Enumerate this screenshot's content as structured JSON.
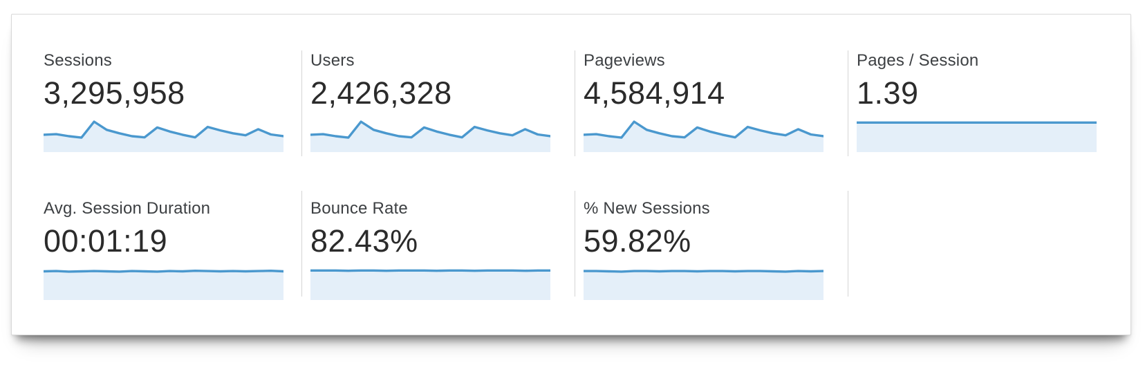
{
  "panel": {
    "description": "analytics metrics overview panel"
  },
  "cards": [
    {
      "label": "Sessions",
      "value": "3,295,958"
    },
    {
      "label": "Users",
      "value": "2,426,328"
    },
    {
      "label": "Pageviews",
      "value": "4,584,914"
    },
    {
      "label": "Pages / Session",
      "value": "1.39"
    },
    {
      "label": "Avg. Session Duration",
      "value": "00:01:19"
    },
    {
      "label": "Bounce Rate",
      "value": "82.43%"
    },
    {
      "label": "% New Sessions",
      "value": "59.82%"
    }
  ],
  "chart_data": [
    {
      "type": "area",
      "name": "sessions-sparkline",
      "title": "Sessions trend",
      "axes": "none (unlabeled sparkline)",
      "points_norm": [
        0.55,
        0.57,
        0.5,
        0.45,
        1.0,
        0.72,
        0.6,
        0.5,
        0.46,
        0.8,
        0.66,
        0.55,
        0.46,
        0.82,
        0.7,
        0.6,
        0.53,
        0.74,
        0.56,
        0.5
      ]
    },
    {
      "type": "area",
      "name": "users-sparkline",
      "title": "Users trend",
      "axes": "none (unlabeled sparkline)",
      "points_norm": [
        0.55,
        0.57,
        0.5,
        0.45,
        1.0,
        0.72,
        0.6,
        0.5,
        0.46,
        0.8,
        0.66,
        0.55,
        0.46,
        0.82,
        0.7,
        0.6,
        0.53,
        0.74,
        0.56,
        0.5
      ]
    },
    {
      "type": "area",
      "name": "pageviews-sparkline",
      "title": "Pageviews trend",
      "axes": "none (unlabeled sparkline)",
      "points_norm": [
        0.55,
        0.57,
        0.5,
        0.45,
        1.0,
        0.72,
        0.6,
        0.5,
        0.46,
        0.8,
        0.66,
        0.55,
        0.46,
        0.82,
        0.7,
        0.6,
        0.53,
        0.74,
        0.56,
        0.5
      ]
    },
    {
      "type": "area",
      "name": "pages-per-session-sparkline",
      "title": "Pages / Session trend (flat)",
      "axes": "none (unlabeled sparkline)",
      "points_norm": [
        0.97,
        0.97,
        0.97,
        0.97,
        0.97,
        0.97,
        0.97,
        0.97,
        0.97,
        0.97,
        0.97,
        0.97,
        0.97,
        0.97,
        0.97,
        0.97,
        0.97,
        0.97,
        0.97,
        0.97
      ]
    },
    {
      "type": "area",
      "name": "avg-session-duration-sparkline",
      "title": "Avg. Session Duration trend (near flat)",
      "axes": "none (unlabeled sparkline)",
      "points_norm": [
        0.94,
        0.95,
        0.93,
        0.94,
        0.95,
        0.94,
        0.93,
        0.95,
        0.94,
        0.93,
        0.95,
        0.94,
        0.96,
        0.95,
        0.94,
        0.95,
        0.94,
        0.95,
        0.96,
        0.94
      ]
    },
    {
      "type": "area",
      "name": "bounce-rate-sparkline",
      "title": "Bounce Rate trend (flat)",
      "axes": "none (unlabeled sparkline)",
      "points_norm": [
        0.97,
        0.97,
        0.97,
        0.96,
        0.97,
        0.97,
        0.96,
        0.97,
        0.97,
        0.97,
        0.96,
        0.97,
        0.97,
        0.96,
        0.97,
        0.97,
        0.97,
        0.96,
        0.97,
        0.97
      ]
    },
    {
      "type": "area",
      "name": "pct-new-sessions-sparkline",
      "title": "% New Sessions trend (flat)",
      "axes": "none (unlabeled sparkline)",
      "points_norm": [
        0.95,
        0.95,
        0.94,
        0.93,
        0.95,
        0.95,
        0.94,
        0.95,
        0.95,
        0.94,
        0.95,
        0.95,
        0.94,
        0.95,
        0.95,
        0.94,
        0.93,
        0.95,
        0.94,
        0.95
      ]
    }
  ],
  "colors": {
    "spark_line": "#4a98ce",
    "spark_fill": "#e4eff9",
    "divider": "#d4d4d4",
    "label_text": "#3d4043",
    "value_text": "#2b2b2b",
    "panel_border": "#d8d8d8",
    "panel_bg": "#ffffff"
  }
}
